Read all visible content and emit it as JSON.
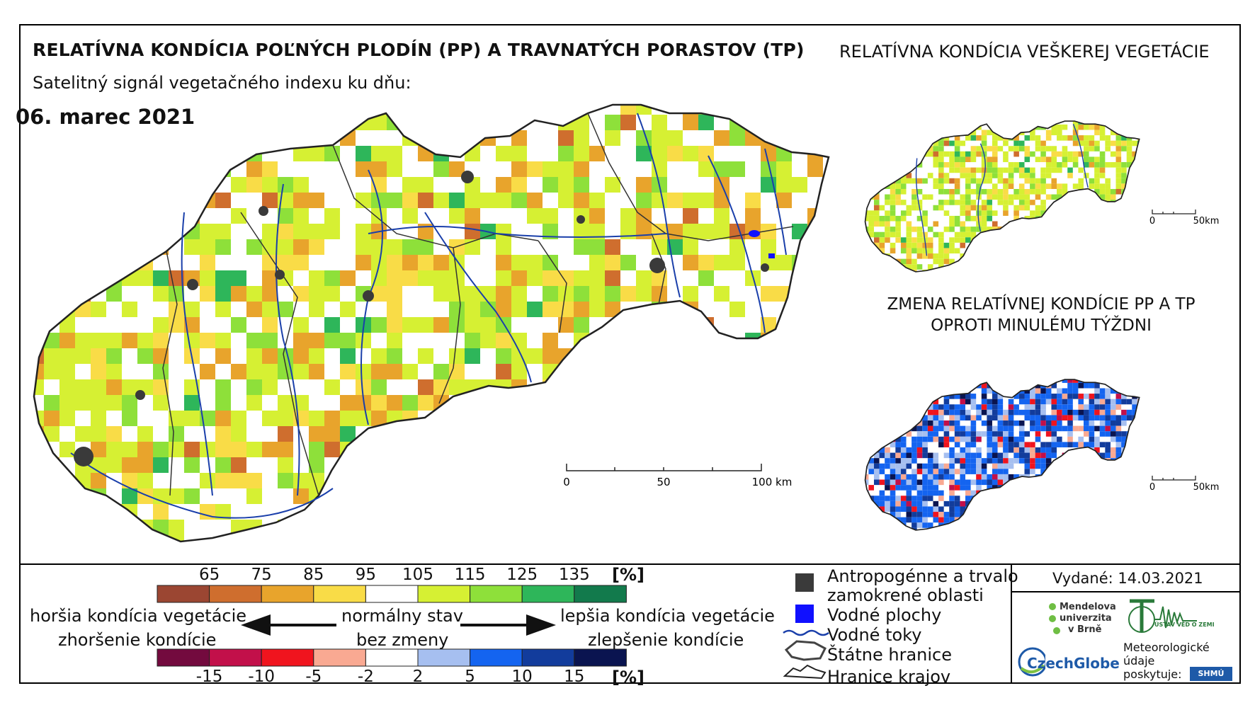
{
  "header": {
    "title": "RELATÍVNA KONDÍCIA POĽNÝCH PLODÍN (PP) A TRAVNATÝCH PORASTOV (TP)",
    "subtitle": "Satelitný signál vegetačného indexu ku dňu:",
    "date": "06. marec 2021"
  },
  "side_maps": {
    "top_title": "RELATÍVNA KONDÍCIA VEŠKEREJ VEGETÁCIE",
    "bottom_title_line1": "ZMENA RELATÍVNEJ KONDÍCIE PP A TP",
    "bottom_title_line2": "OPROTI MINULÉMU TÝŽDNI",
    "scale_zero": "0",
    "scale_end": "50km"
  },
  "main_map": {
    "scale_labels": [
      "0",
      "50",
      "100 km"
    ]
  },
  "legend": {
    "condition_ticks": [
      "65",
      "75",
      "85",
      "95",
      "105",
      "115",
      "125",
      "135"
    ],
    "condition_unit": "[%]",
    "condition_colors": [
      "#9b4632",
      "#cf6e2e",
      "#e8a42c",
      "#f9dc47",
      "#ffffff",
      "#d6f033",
      "#8ee03a",
      "#2eb65a",
      "#127a4c"
    ],
    "change_ticks": [
      "-15",
      "-10",
      "-5",
      "-2",
      "2",
      "5",
      "10",
      "15"
    ],
    "change_unit": "[%]",
    "change_colors": [
      "#730a3e",
      "#c2104a",
      "#f0141e",
      "#f9a992",
      "#ffffff",
      "#a6bff0",
      "#1464f0",
      "#123c9c",
      "#0a1450"
    ],
    "worse_line1": "horšia kondícia vegetácie",
    "worse_line2": "zhoršenie kondície",
    "normal_line1": "normálny stav",
    "normal_line2": "bez zmeny",
    "better_line1": "lepšia kondícia vegetácie",
    "better_line2": "zlepšenie kondície"
  },
  "map_legend": {
    "items": [
      {
        "label1": "Antropogénne a trvalo",
        "label2": "zamokrené oblasti"
      },
      {
        "label1": "Vodné plochy"
      },
      {
        "label1": "Vodné toky"
      },
      {
        "label1": "Štátne hranice"
      },
      {
        "label1": "Hranice krajov"
      }
    ]
  },
  "issued": "Vydané: 14.03.2021",
  "logos": {
    "mendelu_line1": "Mendelova",
    "mendelu_line2": "univerzita",
    "mendelu_line3": "v Brně",
    "czechglobe": "CzechGlobe",
    "ustav": "ÚSTAV VĚD O ZEMI",
    "meteo_line1": "Meteorologické",
    "meteo_line2": "údaje",
    "meteo_line3": "poskytuje:",
    "shmu": "SHMÚ"
  }
}
